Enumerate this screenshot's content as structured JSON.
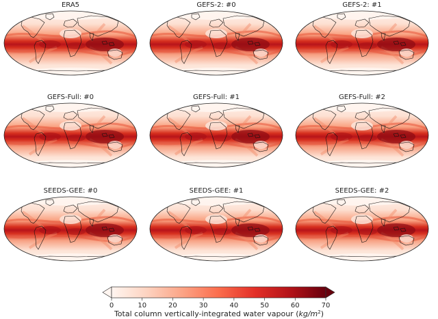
{
  "figure": {
    "panels": [
      {
        "title": "ERA5"
      },
      {
        "title": "GEFS-2: #0"
      },
      {
        "title": "GEFS-2: #1"
      },
      {
        "title": "GEFS-Full: #0"
      },
      {
        "title": "GEFS-Full: #1"
      },
      {
        "title": "GEFS-Full: #2"
      },
      {
        "title": "SEEDS-GEE: #0"
      },
      {
        "title": "SEEDS-GEE: #1"
      },
      {
        "title": "SEEDS-GEE: #2"
      }
    ]
  },
  "colorbar": {
    "ticks": [
      "0",
      "10",
      "20",
      "30",
      "40",
      "50",
      "60",
      "70"
    ],
    "label_prefix": "Total column vertically-integrated water vapour (",
    "label_unit": "kg/m",
    "label_exp": "2",
    "label_suffix": ")",
    "colors": [
      "#fff5f0",
      "#fdd4c2",
      "#fca486",
      "#fb6d4d",
      "#e32f27",
      "#b11218",
      "#67000d"
    ]
  }
}
